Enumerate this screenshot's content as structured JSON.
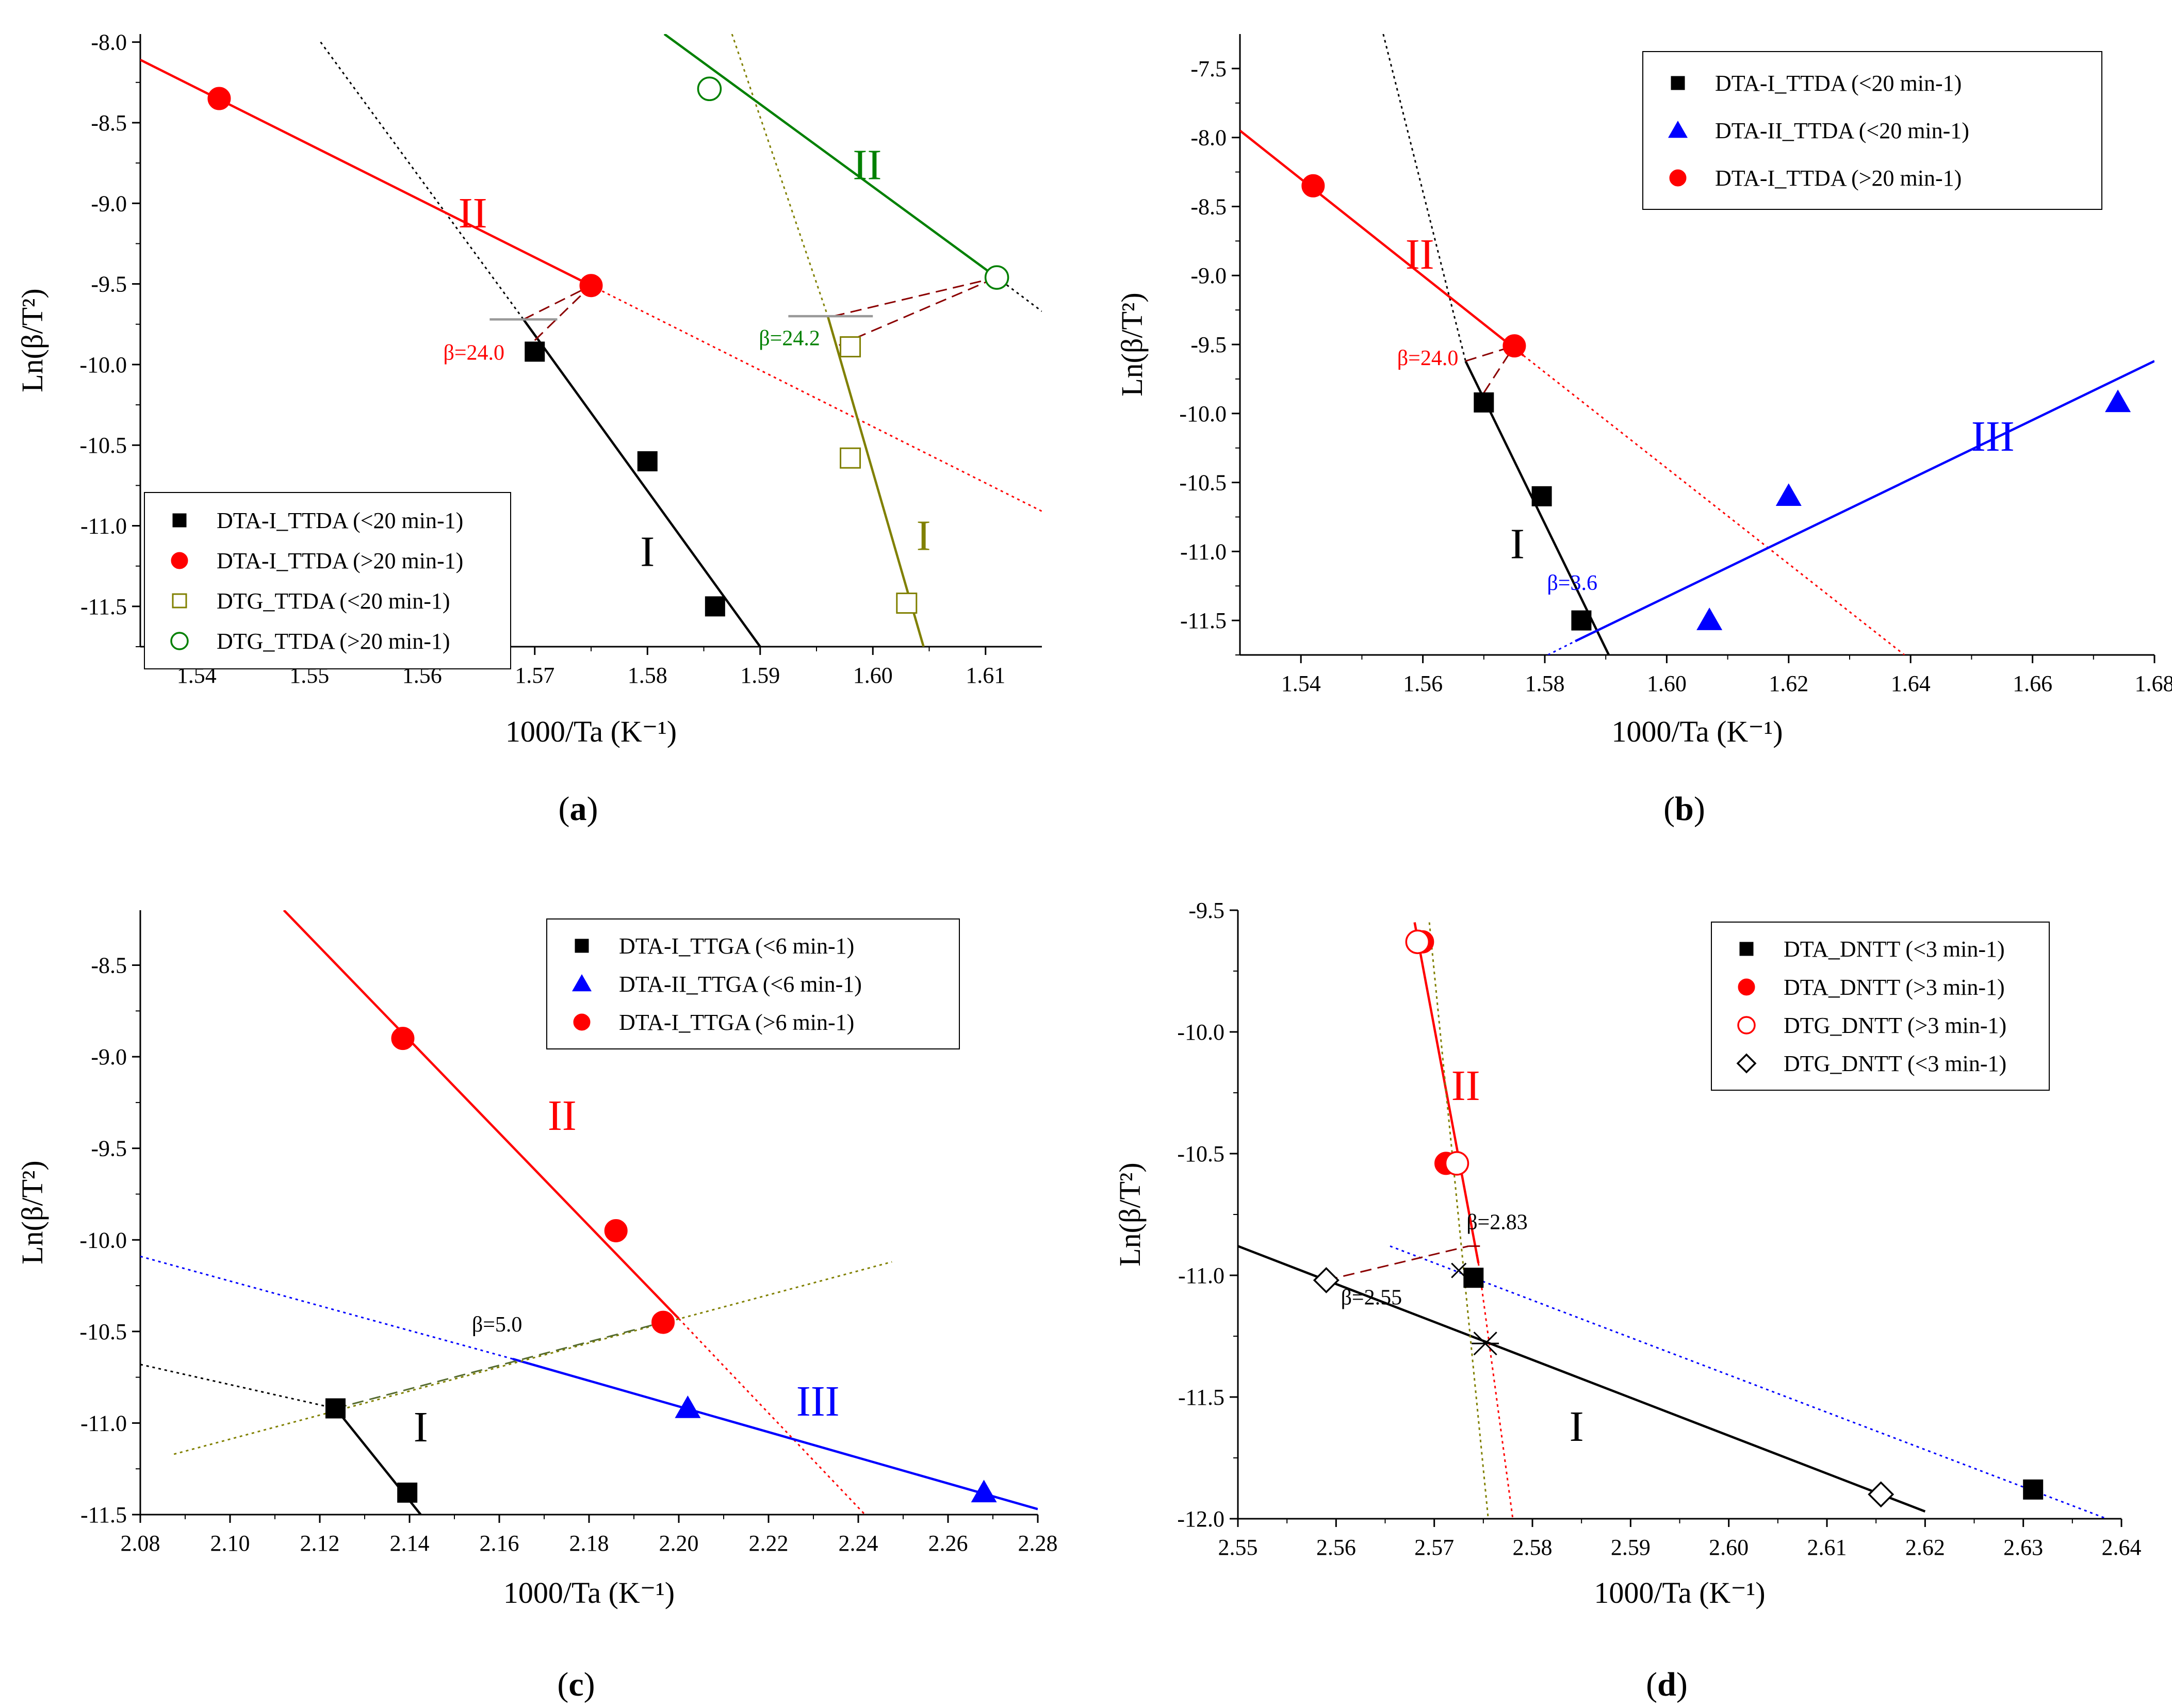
{
  "chart_data": [
    {
      "type": "scatter",
      "panel_label": [
        "(",
        "a",
        ")"
      ],
      "xlabel": "1000/Ta (K⁻¹)",
      "ylabel": "Ln(β/T²)",
      "xlim": [
        1.535,
        1.615
      ],
      "ylim": [
        -11.75,
        -7.95
      ],
      "xticks": [
        1.54,
        1.55,
        1.56,
        1.57,
        1.58,
        1.59,
        1.6,
        1.61
      ],
      "xticklabels": [
        "1.54",
        "1.55",
        "1.56",
        "1.57",
        "1.58",
        "1.59",
        "1.60",
        "1.61"
      ],
      "yticks": [
        -8.0,
        -8.5,
        -9.0,
        -9.5,
        -10.0,
        -10.5,
        -11.0,
        -11.5
      ],
      "yticklabels": [
        "-8.0",
        "-8.5",
        "-9.0",
        "-9.5",
        "-10.0",
        "-10.5",
        "-11.0",
        "-11.5"
      ],
      "legend_position": "bottom-left",
      "series": [
        {
          "name": "DTA-I_TTDA (<20 min-1)",
          "marker": "square",
          "color": "#000000",
          "x": [
            1.57,
            1.58,
            1.586
          ],
          "y": [
            -9.92,
            -10.6,
            -11.5
          ]
        },
        {
          "name": "DTA-I_TTDA (>20 min-1)",
          "marker": "circle",
          "color": "#ff0000",
          "x": [
            1.542,
            1.575
          ],
          "y": [
            -8.35,
            -9.51
          ]
        },
        {
          "name": "DTG_TTDA (<20 min-1)",
          "marker": "open-square",
          "color": "#808000",
          "x": [
            1.598,
            1.598,
            1.603
          ],
          "y": [
            -9.89,
            -10.58,
            -11.48
          ]
        },
        {
          "name": "DTG_TTDA (>20 min-1)",
          "marker": "open-circle",
          "color": "#008000",
          "x": [
            1.5855,
            1.611
          ],
          "y": [
            -8.29,
            -9.46
          ]
        }
      ],
      "lines": [
        {
          "color": "#000000",
          "style": "solid",
          "x": [
            1.569,
            1.59
          ],
          "y": [
            -9.72,
            -11.75
          ]
        },
        {
          "color": "#000000",
          "style": "dotted",
          "x": [
            1.551,
            1.569
          ],
          "y": [
            -8.0,
            -9.72
          ]
        },
        {
          "color": "#ff0000",
          "style": "solid",
          "x": [
            1.535,
            1.575
          ],
          "y": [
            -8.11,
            -9.51
          ]
        },
        {
          "color": "#ff0000",
          "style": "dotted",
          "x": [
            1.575,
            1.615
          ],
          "y": [
            -9.51,
            -10.91
          ]
        },
        {
          "color": "#808000",
          "style": "solid",
          "x": [
            1.596,
            1.6045
          ],
          "y": [
            -9.7,
            -11.75
          ]
        },
        {
          "color": "#808000",
          "style": "dotted",
          "x": [
            1.5875,
            1.596
          ],
          "y": [
            -7.95,
            -9.7
          ]
        },
        {
          "color": "#008000",
          "style": "solid",
          "x": [
            1.5815,
            1.611
          ],
          "y": [
            -7.95,
            -9.46
          ]
        },
        {
          "color": "#000000",
          "style": "dotted",
          "x": [
            1.611,
            1.615
          ],
          "y": [
            -9.46,
            -9.67
          ]
        },
        {
          "color": "#8b0000",
          "style": "dashed",
          "x": [
            1.569,
            1.575
          ],
          "y": [
            -9.72,
            -9.51
          ]
        },
        {
          "color": "#8b0000",
          "style": "dashed",
          "x": [
            1.57,
            1.575
          ],
          "y": [
            -9.85,
            -9.51
          ]
        },
        {
          "color": "#8b0000",
          "style": "dashed",
          "x": [
            1.5965,
            1.611
          ],
          "y": [
            -9.7,
            -9.46
          ]
        },
        {
          "color": "#8b0000",
          "style": "dashed",
          "x": [
            1.597,
            1.611
          ],
          "y": [
            -9.88,
            -9.46
          ]
        },
        {
          "color": "#999999",
          "style": "solid",
          "x": [
            1.566,
            1.572
          ],
          "y": [
            -9.72,
            -9.72
          ]
        },
        {
          "color": "#999999",
          "style": "solid",
          "x": [
            1.5925,
            1.6
          ],
          "y": [
            -9.7,
            -9.7
          ]
        }
      ],
      "annotations": [
        {
          "text": "II",
          "x": 1.5645,
          "y": -9.15,
          "color": "#ff0000",
          "kind": "roman"
        },
        {
          "text": "II",
          "x": 1.5995,
          "y": -8.85,
          "color": "#008000",
          "kind": "roman"
        },
        {
          "text": "I",
          "x": 1.58,
          "y": -11.25,
          "color": "#000000",
          "kind": "roman"
        },
        {
          "text": "I",
          "x": 1.6045,
          "y": -11.15,
          "color": "#808000",
          "kind": "roman"
        },
        {
          "text": "β=24.0",
          "x": 1.5646,
          "y": -9.97,
          "color": "#ff0000",
          "kind": "beta"
        },
        {
          "text": "β=24.2",
          "x": 1.5926,
          "y": -9.88,
          "color": "#008000",
          "kind": "beta"
        }
      ]
    },
    {
      "type": "scatter",
      "panel_label": [
        "(",
        "b",
        ")"
      ],
      "xlabel": "1000/Ta (K⁻¹)",
      "ylabel": "Ln(β/T²)",
      "xlim": [
        1.53,
        1.68
      ],
      "ylim": [
        -11.75,
        -7.25
      ],
      "xticks": [
        1.54,
        1.56,
        1.58,
        1.6,
        1.62,
        1.64,
        1.66,
        1.68
      ],
      "xticklabels": [
        "1.54",
        "1.56",
        "1.58",
        "1.60",
        "1.62",
        "1.64",
        "1.66",
        "1.68"
      ],
      "yticks": [
        -7.5,
        -8.0,
        -8.5,
        -9.0,
        -9.5,
        -10.0,
        -10.5,
        -11.0,
        -11.5
      ],
      "yticklabels": [
        "-7.5",
        "-8.0",
        "-8.5",
        "-9.0",
        "-9.5",
        "-10.0",
        "-10.5",
        "-11.0",
        "-11.5"
      ],
      "legend_position": "top-right",
      "series": [
        {
          "name": "DTA-I_TTDA (<20 min-1)",
          "marker": "square",
          "color": "#000000",
          "x": [
            1.57,
            1.5795,
            1.586
          ],
          "y": [
            -9.92,
            -10.6,
            -11.5
          ]
        },
        {
          "name": "DTA-II_TTDA (<20 min-1)",
          "marker": "triangle",
          "color": "#0000ff",
          "x": [
            1.607,
            1.62,
            1.674
          ],
          "y": [
            -11.5,
            -10.6,
            -9.92
          ]
        },
        {
          "name": "DTA-I_TTDA (>20 min-1)",
          "marker": "circle",
          "color": "#ff0000",
          "x": [
            1.542,
            1.575
          ],
          "y": [
            -8.35,
            -9.51
          ]
        }
      ],
      "lines": [
        {
          "color": "#000000",
          "style": "solid",
          "x": [
            1.567,
            1.5905
          ],
          "y": [
            -9.62,
            -11.75
          ]
        },
        {
          "color": "#000000",
          "style": "dotted",
          "x": [
            1.5535,
            1.567
          ],
          "y": [
            -7.25,
            -9.62
          ]
        },
        {
          "color": "#ff0000",
          "style": "solid",
          "x": [
            1.53,
            1.5765
          ],
          "y": [
            -7.95,
            -9.58
          ]
        },
        {
          "color": "#ff0000",
          "style": "dotted",
          "x": [
            1.5765,
            1.639
          ],
          "y": [
            -9.58,
            -11.75
          ]
        },
        {
          "color": "#0000ff",
          "style": "solid",
          "x": [
            1.585,
            1.68
          ],
          "y": [
            -11.65,
            -9.62
          ]
        },
        {
          "color": "#0000ff",
          "style": "dotted",
          "x": [
            1.5805,
            1.585
          ],
          "y": [
            -11.75,
            -11.65
          ]
        },
        {
          "color": "#8b0000",
          "style": "dashed",
          "x": [
            1.567,
            1.575
          ],
          "y": [
            -9.62,
            -9.51
          ]
        },
        {
          "color": "#8b0000",
          "style": "dashed",
          "x": [
            1.57,
            1.575
          ],
          "y": [
            -9.85,
            -9.51
          ]
        }
      ],
      "annotations": [
        {
          "text": "II",
          "x": 1.5595,
          "y": -8.95,
          "color": "#ff0000",
          "kind": "roman"
        },
        {
          "text": "I",
          "x": 1.5755,
          "y": -11.05,
          "color": "#000000",
          "kind": "roman"
        },
        {
          "text": "III",
          "x": 1.6535,
          "y": -10.27,
          "color": "#0000ff",
          "kind": "roman"
        },
        {
          "text": "β=24.0",
          "x": 1.5608,
          "y": -9.65,
          "color": "#ff0000",
          "kind": "beta"
        },
        {
          "text": "β=3.6",
          "x": 1.5845,
          "y": -11.28,
          "color": "#0000ff",
          "kind": "beta"
        }
      ]
    },
    {
      "type": "scatter",
      "panel_label": [
        "(",
        "c",
        ")"
      ],
      "xlabel": "1000/Ta (K⁻¹)",
      "ylabel": "Ln(β/T²)",
      "xlim": [
        2.08,
        2.28
      ],
      "ylim": [
        -11.5,
        -8.2
      ],
      "xticks": [
        2.08,
        2.1,
        2.12,
        2.14,
        2.16,
        2.18,
        2.2,
        2.22,
        2.24,
        2.26,
        2.28
      ],
      "xticklabels": [
        "2.08",
        "2.10",
        "2.12",
        "2.14",
        "2.16",
        "2.18",
        "2.20",
        "2.22",
        "2.24",
        "2.26",
        "2.28"
      ],
      "yticks": [
        -8.5,
        -9.0,
        -9.5,
        -10.0,
        -10.5,
        -11.0,
        -11.5
      ],
      "yticklabels": [
        "-8.5",
        "-9.0",
        "-9.5",
        "-10.0",
        "-10.5",
        "-11.0",
        "-11.5"
      ],
      "legend_position": "top-right",
      "series": [
        {
          "name": "DTA-I_TTGA (<6 min-1)",
          "marker": "square",
          "color": "#000000",
          "x": [
            2.1235,
            2.1395
          ],
          "y": [
            -10.92,
            -11.38
          ]
        },
        {
          "name": "DTA-II_TTGA (<6 min-1)",
          "marker": "triangle",
          "color": "#0000ff",
          "x": [
            2.202,
            2.268
          ],
          "y": [
            -10.92,
            -11.38
          ]
        },
        {
          "name": "DTA-I_TTGA (>6 min-1)",
          "marker": "circle",
          "color": "#ff0000",
          "x": [
            2.1385,
            2.186,
            2.1965
          ],
          "y": [
            -8.9,
            -9.95,
            -10.45
          ]
        }
      ],
      "lines": [
        {
          "color": "#000000",
          "style": "solid",
          "x": [
            2.1235,
            2.1425
          ],
          "y": [
            -10.92,
            -11.5
          ]
        },
        {
          "color": "#000000",
          "style": "dotted",
          "x": [
            2.08,
            2.1235
          ],
          "y": [
            -10.68,
            -10.92
          ]
        },
        {
          "color": "#ff0000",
          "style": "solid",
          "x": [
            2.112,
            2.2
          ],
          "y": [
            -8.2,
            -10.43
          ]
        },
        {
          "color": "#ff0000",
          "style": "dotted",
          "x": [
            2.2,
            2.2415
          ],
          "y": [
            -10.43,
            -11.5
          ]
        },
        {
          "color": "#0000ff",
          "style": "solid",
          "x": [
            2.163,
            2.28
          ],
          "y": [
            -10.65,
            -11.47
          ]
        },
        {
          "color": "#0000ff",
          "style": "dotted",
          "x": [
            2.08,
            2.163
          ],
          "y": [
            -10.09,
            -10.65
          ]
        },
        {
          "color": "#808000",
          "style": "dotted",
          "x": [
            2.0875,
            2.2475
          ],
          "y": [
            -11.17,
            -10.12
          ]
        },
        {
          "color": "#556b2f",
          "style": "dashed",
          "x": [
            2.1235,
            2.1965
          ],
          "y": [
            -10.92,
            -10.45
          ]
        }
      ],
      "annotations": [
        {
          "text": "II",
          "x": 2.174,
          "y": -9.4,
          "color": "#ff0000",
          "kind": "roman"
        },
        {
          "text": "I",
          "x": 2.1425,
          "y": -11.1,
          "color": "#000000",
          "kind": "roman"
        },
        {
          "text": "III",
          "x": 2.231,
          "y": -10.96,
          "color": "#0000ff",
          "kind": "roman"
        },
        {
          "text": "β=5.0",
          "x": 2.1595,
          "y": -10.5,
          "color": "#000000",
          "kind": "beta"
        }
      ]
    },
    {
      "type": "scatter",
      "panel_label": [
        "(",
        "d",
        ")"
      ],
      "xlabel": "1000/Ta (K⁻¹)",
      "ylabel": "Ln(β/T²)",
      "xlim": [
        2.55,
        2.64
      ],
      "ylim": [
        -12.0,
        -9.5
      ],
      "xticks": [
        2.55,
        2.56,
        2.57,
        2.58,
        2.59,
        2.6,
        2.61,
        2.62,
        2.63,
        2.64
      ],
      "xticklabels": [
        "2.55",
        "2.56",
        "2.57",
        "2.58",
        "2.59",
        "2.60",
        "2.61",
        "2.62",
        "2.63",
        "2.64"
      ],
      "yticks": [
        -9.5,
        -10.0,
        -10.5,
        -11.0,
        -11.5,
        -12.0
      ],
      "yticklabels": [
        "-9.5",
        "-10.0",
        "-10.5",
        "-11.0",
        "-11.5",
        "-12.0"
      ],
      "legend_position": "top-right",
      "series": [
        {
          "name": "DTA_DNTT (<3 min-1)",
          "marker": "square",
          "color": "#000000",
          "x": [
            2.574,
            2.631
          ],
          "y": [
            -11.01,
            -11.88
          ]
        },
        {
          "name": "DTA_DNTT (>3 min-1)",
          "marker": "circle",
          "color": "#ff0000",
          "x": [
            2.5688,
            2.5712
          ],
          "y": [
            -9.63,
            -10.54
          ]
        },
        {
          "name": "DTG_DNTT (>3 min-1)",
          "marker": "open-circle",
          "color": "#ff0000",
          "x": [
            2.5683,
            2.5723
          ],
          "y": [
            -9.63,
            -10.54
          ]
        },
        {
          "name": "DTG_DNTT (<3 min-1)",
          "marker": "open-diamond",
          "color": "#000000",
          "x": [
            2.559,
            2.6155
          ],
          "y": [
            -11.02,
            -11.9
          ]
        }
      ],
      "lines": [
        {
          "color": "#000000",
          "style": "solid",
          "x": [
            2.55,
            2.62
          ],
          "y": [
            -10.88,
            -11.97
          ]
        },
        {
          "color": "#ff0000",
          "style": "solid",
          "x": [
            2.568,
            2.5745
          ],
          "y": [
            -9.55,
            -10.95
          ]
        },
        {
          "color": "#ff0000",
          "style": "dotted",
          "x": [
            2.5745,
            2.578
          ],
          "y": [
            -10.95,
            -12.0
          ]
        },
        {
          "color": "#808000",
          "style": "dotted",
          "x": [
            2.5695,
            2.5755
          ],
          "y": [
            -9.55,
            -12.0
          ]
        },
        {
          "color": "#0000ff",
          "style": "dotted",
          "x": [
            2.5655,
            2.6385
          ],
          "y": [
            -10.88,
            -12.0
          ]
        },
        {
          "color": "#8b0000",
          "style": "dashed",
          "x": [
            2.559,
            2.5735
          ],
          "y": [
            -11.02,
            -10.88
          ]
        },
        {
          "color": "#8b0000",
          "style": "dashed",
          "x": [
            2.5735,
            2.575
          ],
          "y": [
            -10.88,
            -10.88
          ]
        }
      ],
      "crosses": [
        {
          "x": 2.5752,
          "y": -11.28,
          "size": "large"
        },
        {
          "x": 2.5725,
          "y": -10.98,
          "size": "small"
        }
      ],
      "annotations": [
        {
          "text": "II",
          "x": 2.5732,
          "y": -10.28,
          "color": "#ff0000",
          "kind": "roman"
        },
        {
          "text": "I",
          "x": 2.5845,
          "y": -11.68,
          "color": "#000000",
          "kind": "roman"
        },
        {
          "text": "β=2.83",
          "x": 2.5764,
          "y": -10.81,
          "color": "#000000",
          "kind": "beta"
        },
        {
          "text": "β=2.55",
          "x": 2.5636,
          "y": -11.12,
          "color": "#000000",
          "kind": "beta"
        }
      ]
    }
  ]
}
